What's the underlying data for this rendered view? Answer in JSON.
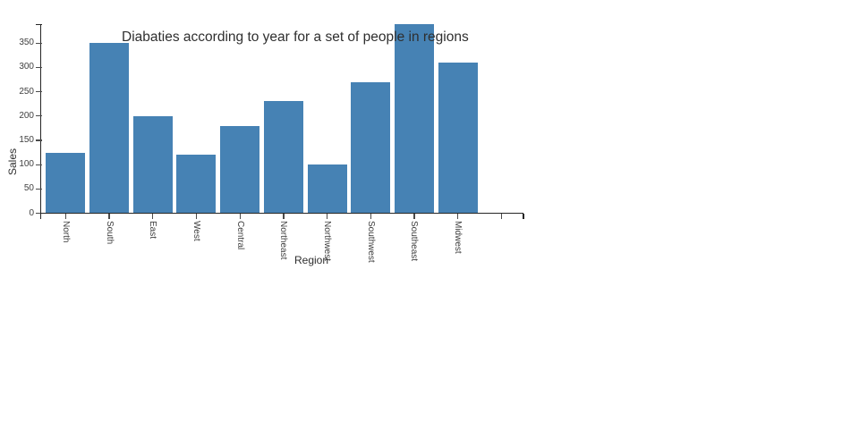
{
  "chart_data": {
    "type": "bar",
    "title": "Diabaties according to year for a set of people in regions",
    "xlabel": "Region",
    "ylabel": "Sales",
    "categories": [
      "North",
      "South",
      "East",
      "West",
      "Central",
      "Northeast",
      "Northwest",
      "Southwest",
      "Southeast",
      "Midwest",
      ""
    ],
    "values": [
      125,
      350,
      200,
      120,
      180,
      230,
      100,
      270,
      390,
      310,
      null
    ],
    "yticks": [
      0,
      50,
      100,
      150,
      200,
      250,
      300,
      350
    ],
    "ylim": [
      0,
      390
    ],
    "grid": false,
    "legend": "none",
    "x_tick_label_rotation_deg": 90,
    "colors": {
      "bar": "#4682B4",
      "axis": "#262626",
      "tick": "#4a4a4a",
      "tick_label": "#3f3f3f",
      "title": "#2f2f2f",
      "background": "#ffffff"
    }
  }
}
